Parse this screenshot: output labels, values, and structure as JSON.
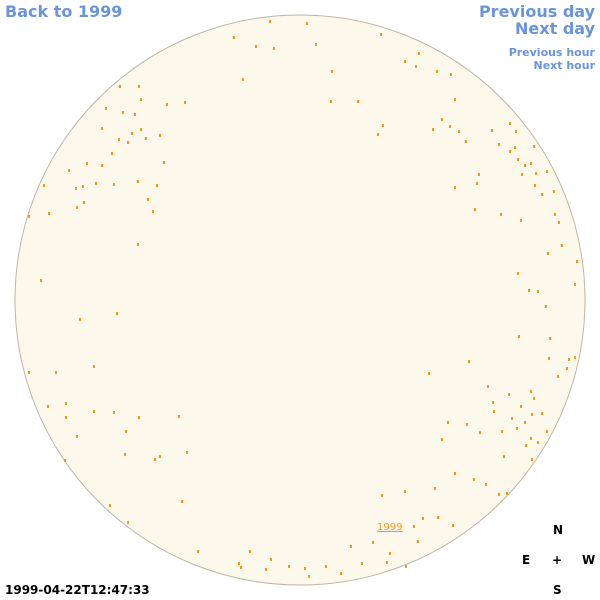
{
  "navigation": {
    "back_label": "Back to 1999",
    "previous_day_label": "Previous day",
    "next_day_label": "Next day",
    "previous_hour_label": "Previous hour",
    "next_hour_label": "Next hour"
  },
  "sky": {
    "background_color": "#fdf8ec",
    "border_color": "#bfb6a6",
    "marker_color": "#f09a1a",
    "label_text": "1999"
  },
  "compass": {
    "north": "N",
    "east": "E",
    "center": "+",
    "west": "W",
    "south": "S"
  },
  "timestamp": "1999-04-22T12:47:33"
}
